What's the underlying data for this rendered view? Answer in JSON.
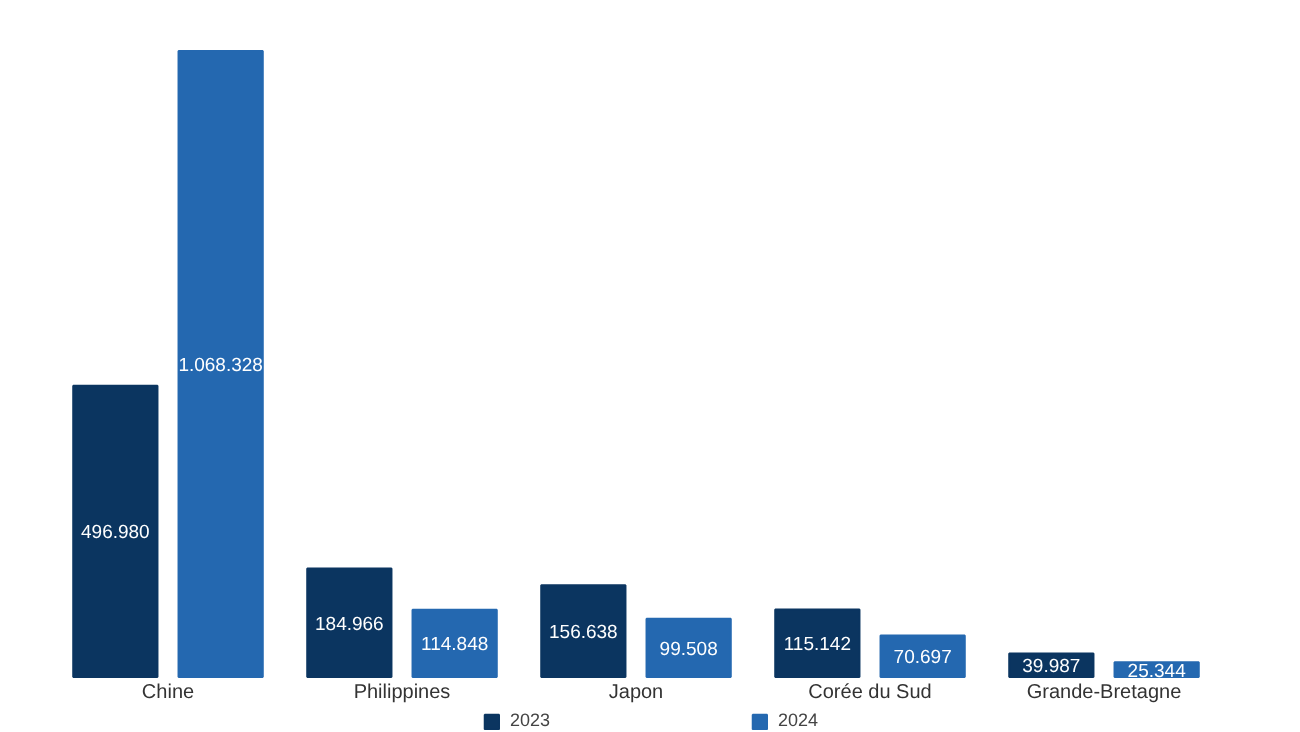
{
  "chart_data": {
    "type": "bar",
    "categories": [
      "Chine",
      "Philippines",
      "Japon",
      "Corée du Sud",
      "Grande-Bretagne"
    ],
    "series": [
      {
        "name": "2023",
        "color": "#0b3560",
        "values": [
          496980,
          184966,
          156638,
          115142,
          39987
        ],
        "value_labels": [
          "496.980",
          "184.966",
          "156.638",
          "115.142",
          "39.987"
        ]
      },
      {
        "name": "2024",
        "color": "#2468b0",
        "values": [
          1068328,
          114848,
          99508,
          70697,
          25344
        ],
        "value_labels": [
          "1.068.328",
          "114.848",
          "99.508",
          "70.697",
          "25.344"
        ]
      }
    ],
    "legend": "bottom"
  }
}
